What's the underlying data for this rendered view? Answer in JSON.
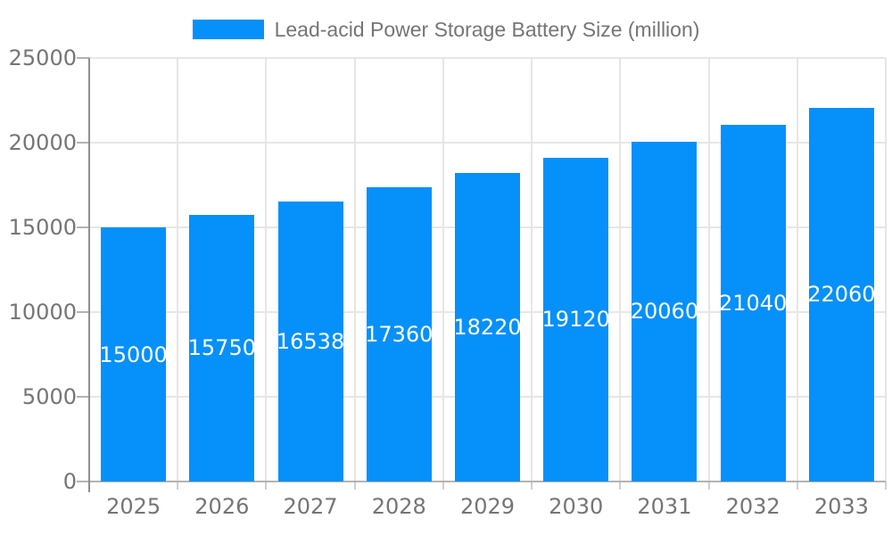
{
  "chart_data": {
    "type": "bar",
    "title": "",
    "legend_position": "top",
    "categories": [
      "2025",
      "2026",
      "2027",
      "2028",
      "2029",
      "2030",
      "2031",
      "2032",
      "2033"
    ],
    "series": [
      {
        "name": "Lead-acid Power Storage Battery Size (million)",
        "values": [
          15000,
          15750,
          16538,
          17360,
          18220,
          19120,
          20060,
          21040,
          22060
        ]
      }
    ],
    "xlabel": "",
    "ylabel": "",
    "ylim": [
      0,
      25000
    ],
    "yticks": [
      0,
      5000,
      10000,
      15000,
      20000,
      25000
    ],
    "grid": true,
    "value_labels_position": "inside-center",
    "colors": {
      "bar": "#0690FA",
      "value_label": "#FFFFFF",
      "axis_text": "#757575",
      "legend_text": "#757575",
      "gridline": "#E6E6E6",
      "x_axis_line": "#B3B3B3",
      "y_axis_line": "#8F8F8F",
      "tick_y": "#B3B3B3",
      "tick_x": "#CFCFCF",
      "background": "#FFFFFF"
    }
  }
}
